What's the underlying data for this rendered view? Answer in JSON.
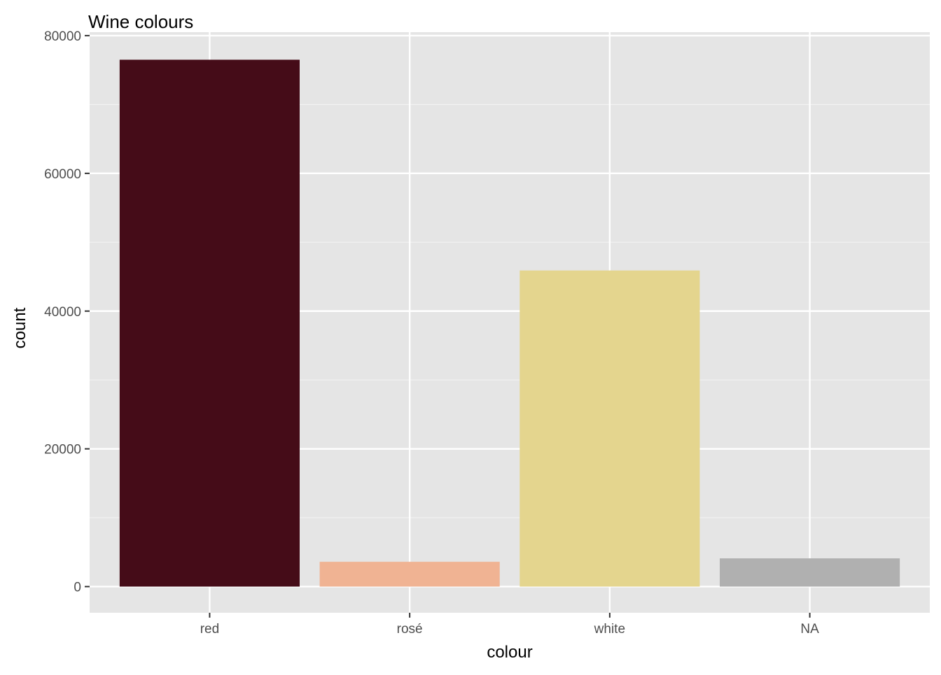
{
  "chart_data": {
    "type": "bar",
    "title": "Wine colours",
    "xlabel": "colour",
    "ylabel": "count",
    "categories": [
      "red",
      "rosé",
      "white",
      "NA"
    ],
    "values": [
      76500,
      3600,
      45900,
      4100
    ],
    "bar_colors": [
      "#450C18",
      "#F0B393",
      "#E4D58E",
      "#B0B0B0"
    ],
    "ylim": [
      -3800,
      80500
    ],
    "yticks": [
      0,
      20000,
      40000,
      60000,
      80000
    ],
    "ytick_labels": [
      "0",
      "20000",
      "40000",
      "60000",
      "80000"
    ],
    "grid": true,
    "legend": "none",
    "colors": {
      "panel_background": "#E5E5E5",
      "grid_major": "#FFFFFF",
      "grid_minor": "#F2F2F2",
      "tick_text": "#4D4D4D",
      "axis_title": "#000000"
    }
  }
}
